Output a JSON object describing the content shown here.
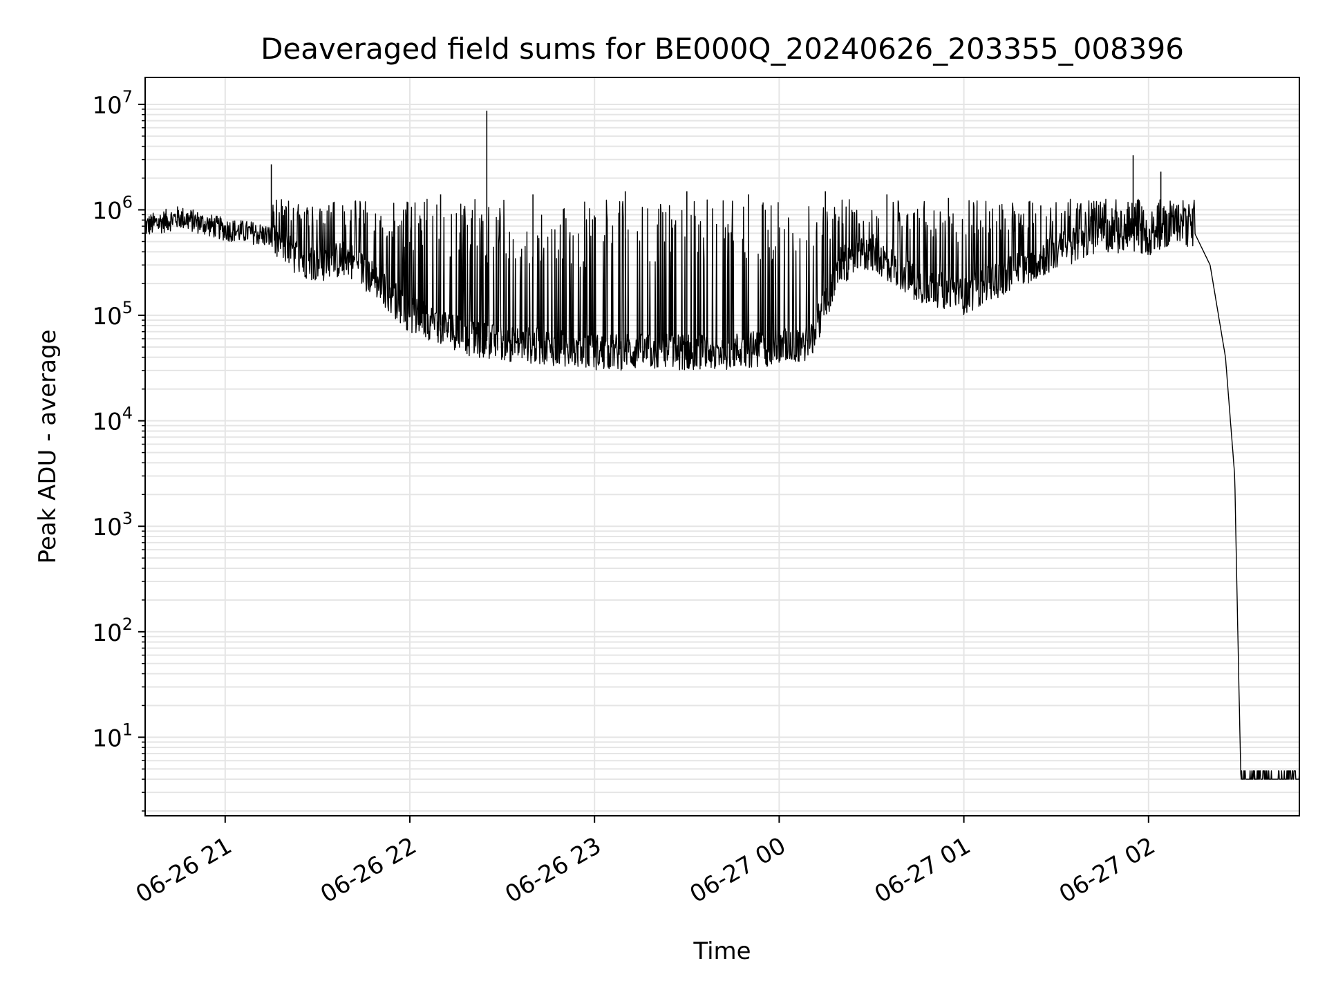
{
  "chart_data": {
    "type": "line",
    "title": "Deaveraged field sums for BE000Q_20240626_203355_008396",
    "xlabel": "Time",
    "ylabel": "Peak ADU - average",
    "yscale": "log",
    "ylim": [
      1.8,
      18000000
    ],
    "xlim": [
      "2024-06-26 20:34",
      "2024-06-27 02:49"
    ],
    "grid": true,
    "line_color": "#000000",
    "grid_color": "#e5e5e5",
    "x_ticks": [
      {
        "value": "2024-06-26 21:00",
        "label": "06-26 21"
      },
      {
        "value": "2024-06-26 22:00",
        "label": "06-26 22"
      },
      {
        "value": "2024-06-26 23:00",
        "label": "06-26 23"
      },
      {
        "value": "2024-06-27 00:00",
        "label": "06-27 00"
      },
      {
        "value": "2024-06-27 01:00",
        "label": "06-27 01"
      },
      {
        "value": "2024-06-27 02:00",
        "label": "06-27 02"
      }
    ],
    "y_ticks": [
      {
        "value": 10,
        "base": "10",
        "exp": "1"
      },
      {
        "value": 100,
        "base": "10",
        "exp": "2"
      },
      {
        "value": 1000,
        "base": "10",
        "exp": "3"
      },
      {
        "value": 10000,
        "base": "10",
        "exp": "4"
      },
      {
        "value": 100000,
        "base": "10",
        "exp": "5"
      },
      {
        "value": 1000000,
        "base": "10",
        "exp": "6"
      },
      {
        "value": 10000000,
        "base": "10",
        "exp": "7"
      }
    ],
    "series": [
      {
        "points": [
          [
            "2024-06-26 20:34",
            700000
          ],
          [
            "2024-06-26 20:45",
            850000
          ],
          [
            "2024-06-26 21:00",
            650000
          ],
          [
            "2024-06-26 21:10",
            600000
          ],
          [
            "2024-06-26 21:15",
            550000
          ],
          [
            "2024-06-26 21:20",
            400000
          ],
          [
            "2024-06-26 21:30",
            300000
          ],
          [
            "2024-06-26 21:40",
            350000
          ],
          [
            "2024-06-26 21:50",
            200000
          ],
          [
            "2024-06-26 22:00",
            100000
          ],
          [
            "2024-06-26 22:10",
            80000
          ],
          [
            "2024-06-26 22:20",
            60000
          ],
          [
            "2024-06-26 22:30",
            55000
          ],
          [
            "2024-06-26 22:45",
            50000
          ],
          [
            "2024-06-26 23:00",
            45000
          ],
          [
            "2024-06-26 23:20",
            45000
          ],
          [
            "2024-06-26 23:40",
            45000
          ],
          [
            "2024-06-27 00:00",
            50000
          ],
          [
            "2024-06-27 00:10",
            55000
          ],
          [
            "2024-06-27 00:20",
            300000
          ],
          [
            "2024-06-27 00:30",
            400000
          ],
          [
            "2024-06-27 00:45",
            200000
          ],
          [
            "2024-06-27 01:00",
            150000
          ],
          [
            "2024-06-27 01:15",
            250000
          ],
          [
            "2024-06-27 01:30",
            400000
          ],
          [
            "2024-06-27 01:45",
            600000
          ],
          [
            "2024-06-27 02:00",
            550000
          ],
          [
            "2024-06-27 02:10",
            750000
          ],
          [
            "2024-06-27 02:15",
            600000
          ],
          [
            "2024-06-27 02:20",
            300000
          ],
          [
            "2024-06-27 02:25",
            40000
          ],
          [
            "2024-06-27 02:28",
            3000
          ],
          [
            "2024-06-27 02:29",
            100
          ],
          [
            "2024-06-27 02:30",
            4
          ],
          [
            "2024-06-27 02:49",
            4
          ]
        ],
        "spikes": [
          [
            "2024-06-26 21:15",
            2700000
          ],
          [
            "2024-06-26 22:25",
            8700000
          ],
          [
            "2024-06-26 21:45",
            1000000
          ],
          [
            "2024-06-26 22:10",
            1400000
          ],
          [
            "2024-06-26 22:40",
            1400000
          ],
          [
            "2024-06-26 23:10",
            1500000
          ],
          [
            "2024-06-26 23:30",
            1500000
          ],
          [
            "2024-06-26 23:50",
            1400000
          ],
          [
            "2024-06-27 00:15",
            1500000
          ],
          [
            "2024-06-27 00:35",
            1400000
          ],
          [
            "2024-06-27 00:55",
            1300000
          ],
          [
            "2024-06-27 01:25",
            1100000
          ],
          [
            "2024-06-27 01:55",
            3300000
          ],
          [
            "2024-06-27 02:04",
            2300000
          ]
        ]
      }
    ]
  }
}
